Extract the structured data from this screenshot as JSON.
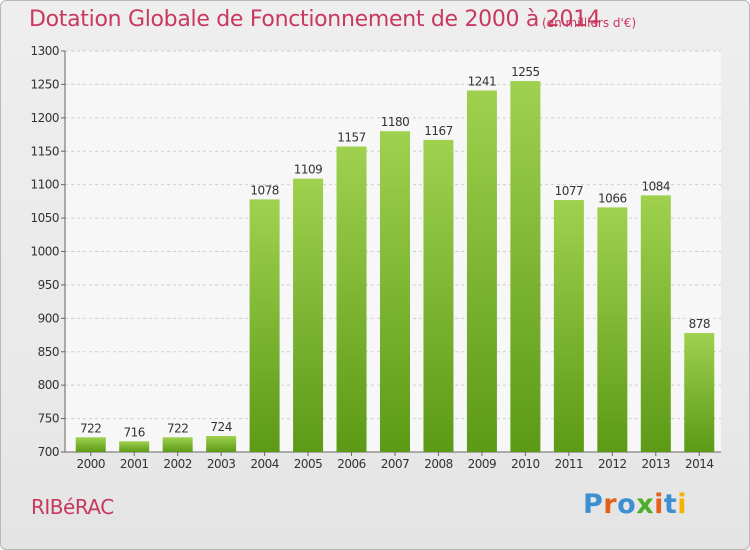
{
  "page": {
    "title": "Dotation Globale de Fonctionnement de 2000 à 2014",
    "subtitle": "(en milliers d'€)",
    "town": "RIBéRAC",
    "logo_text": "Proxiti",
    "logo_colors": [
      "#3c8fd0",
      "#e2611b",
      "#3c8fd0",
      "#4caf2a",
      "#e2611b",
      "#3c8fd0",
      "#f2b400"
    ]
  },
  "colors": {
    "title": "#c8385f",
    "bar_top": "#9fd14f",
    "bar_bottom": "#5c9a16",
    "grid": "#cfcfcf",
    "axis_text": "#333333"
  },
  "chart_data": {
    "type": "bar",
    "categories": [
      "2000",
      "2001",
      "2002",
      "2003",
      "2004",
      "2005",
      "2006",
      "2007",
      "2008",
      "2009",
      "2010",
      "2011",
      "2012",
      "2013",
      "2014"
    ],
    "values": [
      722,
      716,
      722,
      724,
      1078,
      1109,
      1157,
      1180,
      1167,
      1241,
      1255,
      1077,
      1066,
      1084,
      878
    ],
    "ylim": [
      700,
      1300
    ],
    "yticks": [
      700,
      750,
      800,
      850,
      900,
      950,
      1000,
      1050,
      1100,
      1150,
      1200,
      1250,
      1300
    ],
    "grid": "dashed horizontal",
    "data_labels": true
  }
}
